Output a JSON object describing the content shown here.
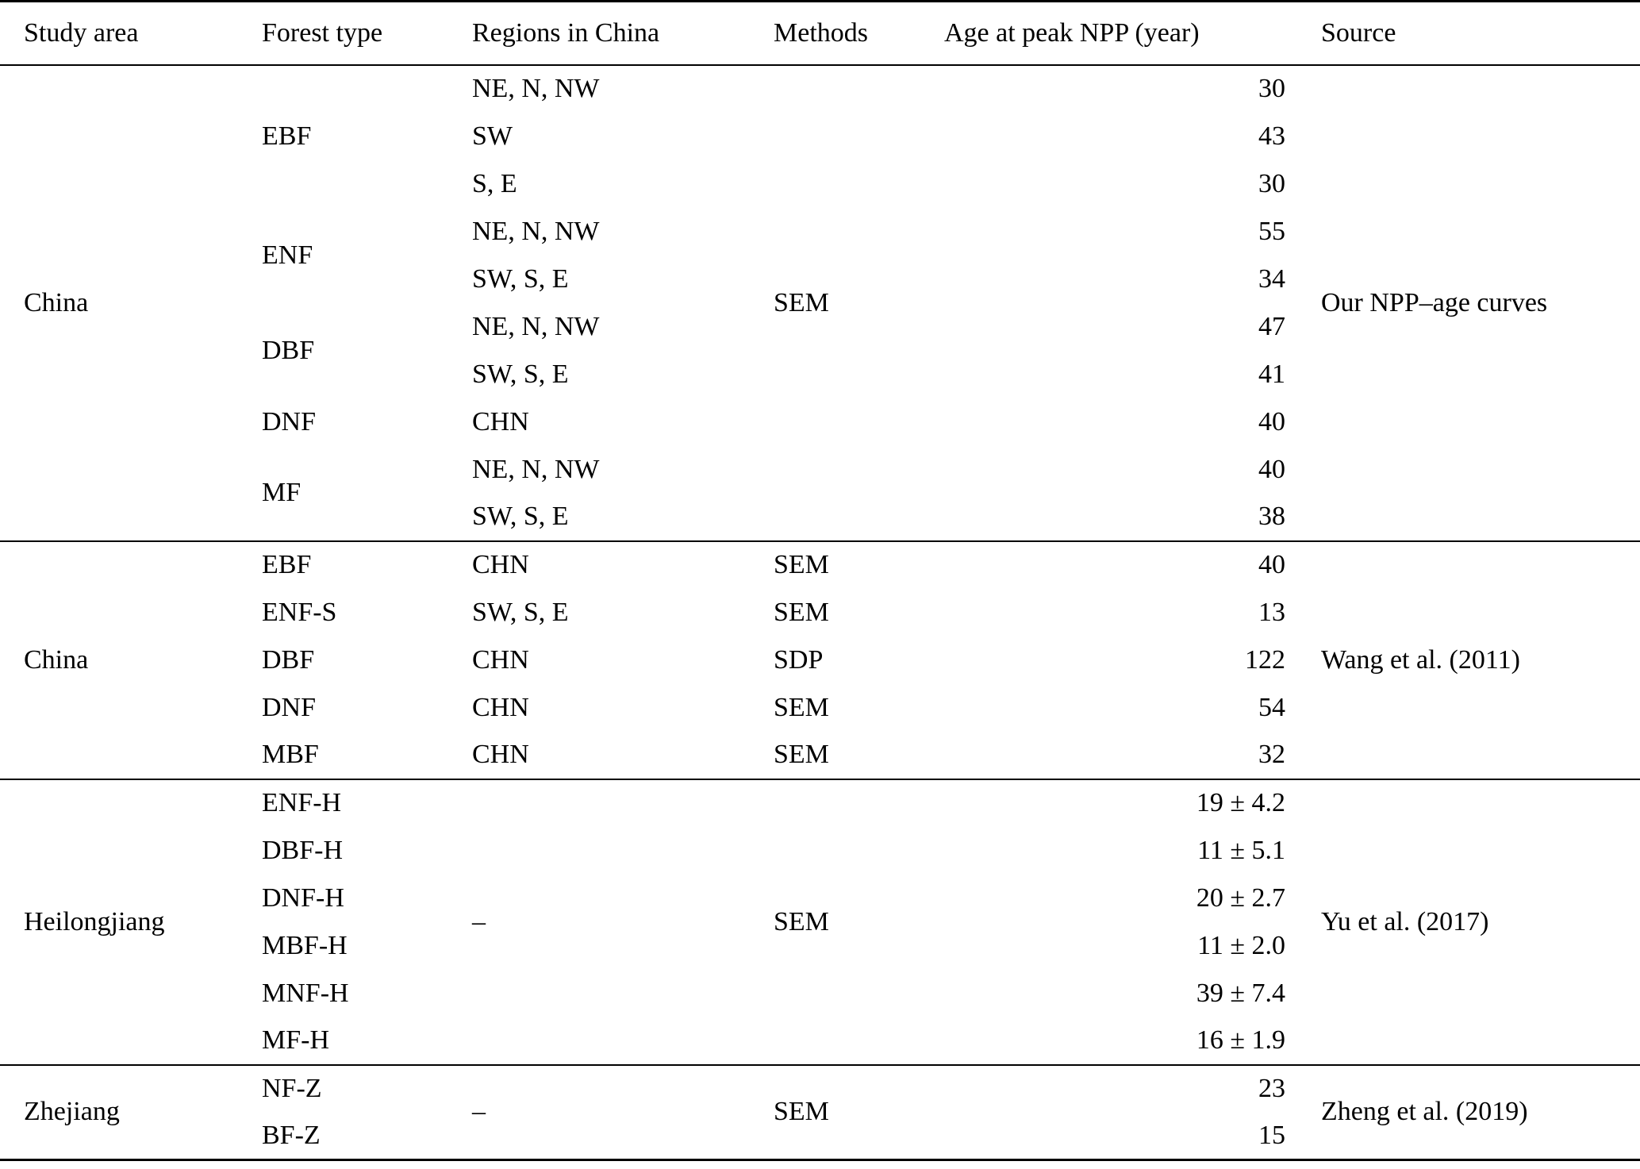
{
  "table": {
    "columns": [
      {
        "key": "study",
        "label": "Study area"
      },
      {
        "key": "forest",
        "label": "Forest type"
      },
      {
        "key": "region",
        "label": "Regions in China"
      },
      {
        "key": "method",
        "label": "Methods"
      },
      {
        "key": "age",
        "label": "Age at peak NPP (year)"
      },
      {
        "key": "source",
        "label": "Source"
      }
    ],
    "sections": [
      {
        "rows": [
          [
            {
              "col": "study",
              "text": "China",
              "span": 10
            },
            {
              "col": "forest",
              "text": "EBF",
              "span": 3
            },
            {
              "col": "region",
              "text": "NE, N, NW"
            },
            {
              "col": "method",
              "text": "SEM",
              "span": 10
            },
            {
              "col": "age",
              "text": "30"
            },
            {
              "col": "source",
              "text": "Our NPP–age curves",
              "span": 10
            }
          ],
          [
            {
              "col": "region",
              "text": "SW"
            },
            {
              "col": "age",
              "text": "43"
            }
          ],
          [
            {
              "col": "region",
              "text": "S, E"
            },
            {
              "col": "age",
              "text": "30"
            }
          ],
          [
            {
              "col": "forest",
              "text": "ENF",
              "span": 2
            },
            {
              "col": "region",
              "text": "NE, N, NW"
            },
            {
              "col": "age",
              "text": "55"
            }
          ],
          [
            {
              "col": "region",
              "text": "SW, S, E"
            },
            {
              "col": "age",
              "text": "34"
            }
          ],
          [
            {
              "col": "forest",
              "text": "DBF",
              "span": 2
            },
            {
              "col": "region",
              "text": "NE, N, NW"
            },
            {
              "col": "age",
              "text": "47"
            }
          ],
          [
            {
              "col": "region",
              "text": "SW, S, E"
            },
            {
              "col": "age",
              "text": "41"
            }
          ],
          [
            {
              "col": "forest",
              "text": "DNF"
            },
            {
              "col": "region",
              "text": "CHN"
            },
            {
              "col": "age",
              "text": "40"
            }
          ],
          [
            {
              "col": "forest",
              "text": "MF",
              "span": 2
            },
            {
              "col": "region",
              "text": "NE, N, NW"
            },
            {
              "col": "age",
              "text": "40"
            }
          ],
          [
            {
              "col": "region",
              "text": "SW, S, E"
            },
            {
              "col": "age",
              "text": "38"
            }
          ]
        ]
      },
      {
        "rows": [
          [
            {
              "col": "study",
              "text": "China",
              "span": 5
            },
            {
              "col": "forest",
              "text": "EBF"
            },
            {
              "col": "region",
              "text": "CHN"
            },
            {
              "col": "method",
              "text": "SEM"
            },
            {
              "col": "age",
              "text": "40"
            },
            {
              "col": "source",
              "text": "Wang et al. (2011)",
              "span": 5
            }
          ],
          [
            {
              "col": "forest",
              "text": "ENF-S"
            },
            {
              "col": "region",
              "text": "SW, S, E"
            },
            {
              "col": "method",
              "text": "SEM"
            },
            {
              "col": "age",
              "text": "13"
            }
          ],
          [
            {
              "col": "forest",
              "text": "DBF"
            },
            {
              "col": "region",
              "text": "CHN"
            },
            {
              "col": "method",
              "text": "SDP"
            },
            {
              "col": "age",
              "text": "122"
            }
          ],
          [
            {
              "col": "forest",
              "text": "DNF"
            },
            {
              "col": "region",
              "text": "CHN"
            },
            {
              "col": "method",
              "text": "SEM"
            },
            {
              "col": "age",
              "text": "54"
            }
          ],
          [
            {
              "col": "forest",
              "text": "MBF"
            },
            {
              "col": "region",
              "text": "CHN"
            },
            {
              "col": "method",
              "text": "SEM"
            },
            {
              "col": "age",
              "text": "32"
            }
          ]
        ]
      },
      {
        "rows": [
          [
            {
              "col": "study",
              "text": "Heilongjiang",
              "span": 6
            },
            {
              "col": "forest",
              "text": "ENF-H"
            },
            {
              "col": "region",
              "text": "–",
              "span": 6
            },
            {
              "col": "method",
              "text": "SEM",
              "span": 6
            },
            {
              "col": "age",
              "text": "19 ± 4.2"
            },
            {
              "col": "source",
              "text": "Yu et al. (2017)",
              "span": 6
            }
          ],
          [
            {
              "col": "forest",
              "text": "DBF-H"
            },
            {
              "col": "age",
              "text": "11 ± 5.1"
            }
          ],
          [
            {
              "col": "forest",
              "text": "DNF-H"
            },
            {
              "col": "age",
              "text": "20 ± 2.7"
            }
          ],
          [
            {
              "col": "forest",
              "text": "MBF-H"
            },
            {
              "col": "age",
              "text": "11 ± 2.0"
            }
          ],
          [
            {
              "col": "forest",
              "text": "MNF-H"
            },
            {
              "col": "age",
              "text": "39 ± 7.4"
            }
          ],
          [
            {
              "col": "forest",
              "text": "MF-H"
            },
            {
              "col": "age",
              "text": "16 ± 1.9"
            }
          ]
        ]
      },
      {
        "rows": [
          [
            {
              "col": "study",
              "text": "Zhejiang",
              "span": 2
            },
            {
              "col": "forest",
              "text": "NF-Z"
            },
            {
              "col": "region",
              "text": "–",
              "span": 2
            },
            {
              "col": "method",
              "text": "SEM",
              "span": 2
            },
            {
              "col": "age",
              "text": "23"
            },
            {
              "col": "source",
              "text": "Zheng et al. (2019)",
              "span": 2
            }
          ],
          [
            {
              "col": "forest",
              "text": "BF-Z"
            },
            {
              "col": "age",
              "text": "15"
            }
          ]
        ]
      }
    ]
  }
}
